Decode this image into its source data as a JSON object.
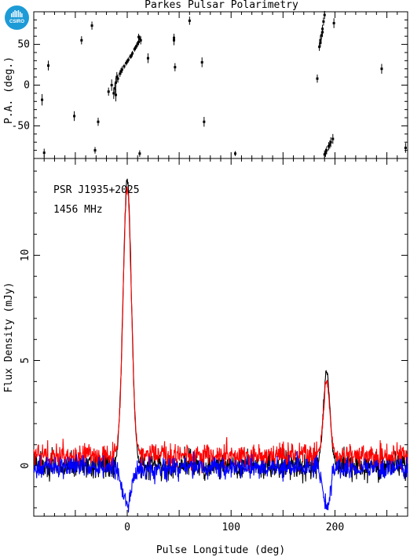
{
  "header": {
    "title": "Parkes Pulsar Polarimetry",
    "logo_text": "CSIRO"
  },
  "colors": {
    "total_intensity": "#000000",
    "linear_polarisation": "#ff0000",
    "circular_polarisation": "#0000ff",
    "logo": "#1d9bd7"
  },
  "chart_data": [
    {
      "type": "scatter",
      "name": "position-angle",
      "ylabel": "P.A. (deg.)",
      "xlim": [
        -90,
        270
      ],
      "ylim": [
        -90,
        90
      ],
      "yticks": [
        -50,
        0,
        50
      ],
      "points": [
        [
          -82,
          -18,
          7
        ],
        [
          -80,
          -83,
          5
        ],
        [
          -76,
          24,
          6
        ],
        [
          -51,
          -38,
          6
        ],
        [
          -44,
          55,
          5
        ],
        [
          -34,
          73,
          5
        ],
        [
          -31,
          -80,
          4
        ],
        [
          -28,
          -45,
          5
        ],
        [
          -18,
          -8,
          5
        ],
        [
          -15,
          0,
          7
        ],
        [
          -13,
          -10,
          7
        ],
        [
          -11,
          3,
          6
        ],
        [
          -9,
          8,
          5
        ],
        [
          -7,
          14,
          4
        ],
        [
          -5,
          19,
          4
        ],
        [
          -3,
          23,
          3
        ],
        [
          -1,
          27,
          3
        ],
        [
          1,
          31,
          3
        ],
        [
          3,
          35,
          3
        ],
        [
          5,
          39,
          3
        ],
        [
          7,
          44,
          3
        ],
        [
          9,
          48,
          3
        ],
        [
          11,
          53,
          4
        ],
        [
          12,
          57,
          4
        ],
        [
          11,
          59,
          4
        ],
        [
          13,
          55,
          5
        ],
        [
          -12,
          -4,
          6
        ],
        [
          -10,
          10,
          6
        ],
        [
          -11,
          -12,
          8
        ],
        [
          -6,
          17,
          4
        ],
        [
          0,
          29,
          3
        ],
        [
          4,
          36,
          3
        ],
        [
          8,
          46,
          3
        ],
        [
          10,
          51,
          3
        ],
        [
          12,
          -84,
          4
        ],
        [
          20,
          33,
          6
        ],
        [
          45,
          55,
          6
        ],
        [
          45,
          58,
          5
        ],
        [
          46,
          22,
          5
        ],
        [
          60,
          79,
          5
        ],
        [
          72,
          28,
          6
        ],
        [
          74,
          -45,
          6
        ],
        [
          104,
          -84,
          3
        ],
        [
          183,
          8,
          5
        ],
        [
          185,
          47,
          5
        ],
        [
          186,
          52,
          5
        ],
        [
          187,
          61,
          5
        ],
        [
          188,
          69,
          5
        ],
        [
          189,
          78,
          5
        ],
        [
          190,
          86,
          5
        ],
        [
          186,
          55,
          6
        ],
        [
          188,
          65,
          6
        ],
        [
          190,
          -85,
          5
        ],
        [
          192,
          -80,
          5
        ],
        [
          194,
          -75,
          5
        ],
        [
          196,
          -70,
          6
        ],
        [
          191,
          -83,
          5
        ],
        [
          195,
          -73,
          5
        ],
        [
          198,
          -66,
          6
        ],
        [
          199,
          76,
          6
        ],
        [
          245,
          20,
          6
        ],
        [
          268,
          -77,
          6
        ]
      ]
    },
    {
      "type": "line",
      "name": "pulse-profile",
      "annotation_name": "PSR J1935+2025",
      "annotation_freq": "1456 MHz",
      "xlabel": "Pulse Longitude (deg)",
      "ylabel": "Flux Density (mJy)",
      "xlim": [
        -90,
        270
      ],
      "ylim": [
        -2.4,
        14.6
      ],
      "xticks": [
        0,
        100,
        200
      ],
      "yticks": [
        0,
        5,
        10
      ],
      "components": [
        {
          "center": 0,
          "width": 4.0,
          "total_peak": 13.6,
          "linear_peak": 13.2,
          "circular_peak": -1.8
        },
        {
          "center": 192,
          "width": 3.2,
          "total_peak": 4.5,
          "linear_peak": 4.0,
          "circular_peak": -1.9
        }
      ],
      "noise": {
        "total_rms": 0.45,
        "linear_rms": 0.4,
        "linear_offset": 0.5,
        "circular_rms": 0.35,
        "circular_offset": -0.1
      },
      "series": [
        {
          "name": "",
          "color": "#000000",
          "role": "total intensity"
        },
        {
          "name": "",
          "color": "#ff0000",
          "role": "linear polarisation"
        },
        {
          "name": "",
          "color": "#0000ff",
          "role": "circular polarisation"
        }
      ]
    }
  ]
}
